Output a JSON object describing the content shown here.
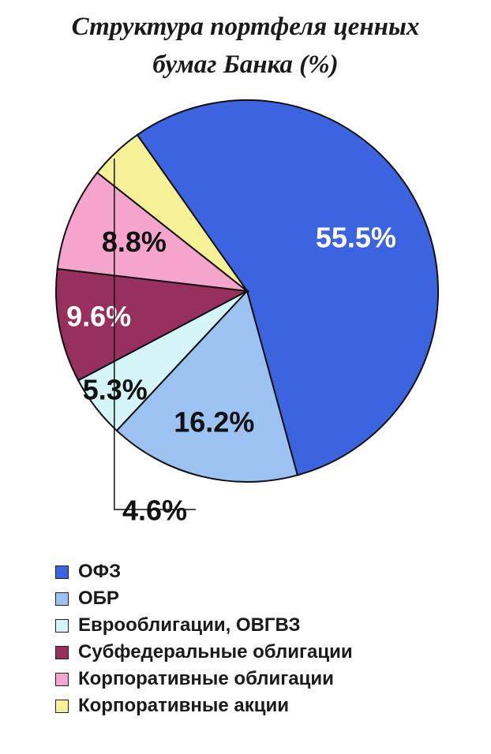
{
  "chart_data": {
    "type": "pie",
    "title_line1": "Структура портфеля ценных",
    "title_line2": "бумаг Банка (%)",
    "slices": [
      {
        "name": "ОФЗ",
        "value": 55.5,
        "label": "55.5%",
        "color": "#3c64e0",
        "label_color": "#ffffff"
      },
      {
        "name": "ОБР",
        "value": 16.2,
        "label": "16.2%",
        "color": "#9cc2f2",
        "label_color": "#111111"
      },
      {
        "name": "Еврооблигации, ОВГВЗ",
        "value": 5.3,
        "label": "5.3%",
        "color": "#d4f6f8",
        "label_color": "#111111"
      },
      {
        "name": "Субфедеральные облигации",
        "value": 9.6,
        "label": "9.6%",
        "color": "#98305e",
        "label_color": "#ffffff"
      },
      {
        "name": "Корпоративные облигации",
        "value": 8.8,
        "label": "8.8%",
        "color": "#f5a4cc",
        "label_color": "#111111"
      },
      {
        "name": "Корпоративные акции",
        "value": 4.6,
        "label": "4.6%",
        "color": "#f6f196",
        "label_color": "#111111"
      }
    ],
    "legend_position": "bottom-left"
  }
}
